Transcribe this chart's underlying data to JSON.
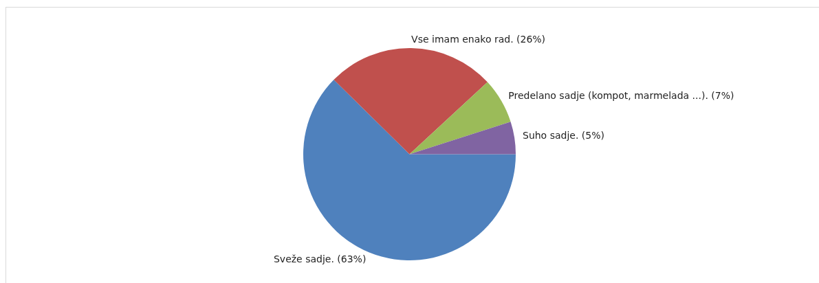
{
  "chart_data": {
    "type": "pie",
    "categories": [
      "Sveže sadje.",
      "Vse imam enako rad.",
      "Predelano sadje (kompot, marmelada ...).",
      "Suho sadje."
    ],
    "values": [
      63,
      26,
      7,
      5
    ],
    "colors": [
      "#4f81bd",
      "#c0504d",
      "#9bbb59",
      "#8064a2"
    ],
    "value_labels": [
      "(63%)",
      "(26%)",
      "(7%)",
      "(5%)"
    ],
    "legend": false
  }
}
